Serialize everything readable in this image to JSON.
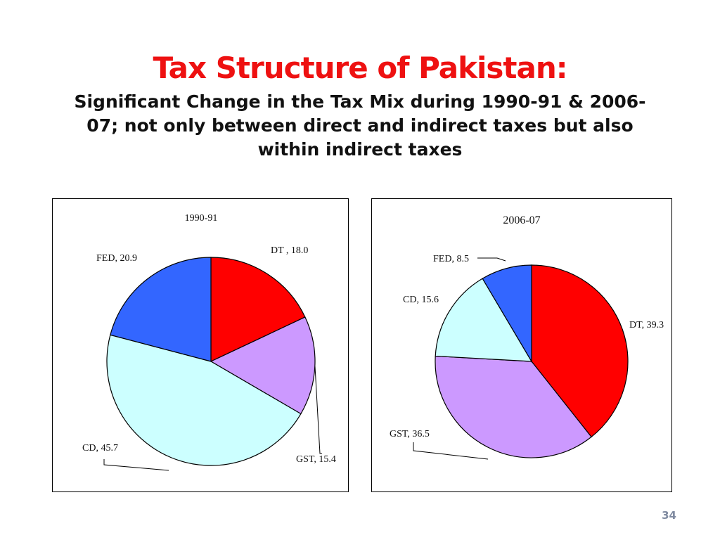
{
  "slide": {
    "title": "Tax Structure of Pakistan:",
    "subtitle": "Significant Change in the Tax Mix during 1990-91 & 2006-07; not only between direct and indirect taxes but also within indirect taxes",
    "page_number": "34"
  },
  "colors": {
    "DT": "#ff0000",
    "GST": "#cc99ff",
    "CD": "#ccffff",
    "FED": "#3366ff",
    "title": "#ee1111"
  },
  "chart_data": [
    {
      "type": "pie",
      "title": "1990-91",
      "slices": [
        {
          "name": "DT",
          "value": 18.0,
          "label": "DT , 18.0"
        },
        {
          "name": "GST",
          "value": 15.4,
          "label": "GST, 15.4"
        },
        {
          "name": "CD",
          "value": 45.7,
          "label": "CD, 45.7"
        },
        {
          "name": "FED",
          "value": 20.9,
          "label": "FED, 20.9"
        }
      ]
    },
    {
      "type": "pie",
      "title": "2006-07",
      "slices": [
        {
          "name": "DT",
          "value": 39.3,
          "label": "DT, 39.3"
        },
        {
          "name": "GST",
          "value": 36.5,
          "label": "GST, 36.5"
        },
        {
          "name": "CD",
          "value": 15.6,
          "label": "CD, 15.6"
        },
        {
          "name": "FED",
          "value": 8.5,
          "label": "FED, 8.5"
        }
      ]
    }
  ]
}
